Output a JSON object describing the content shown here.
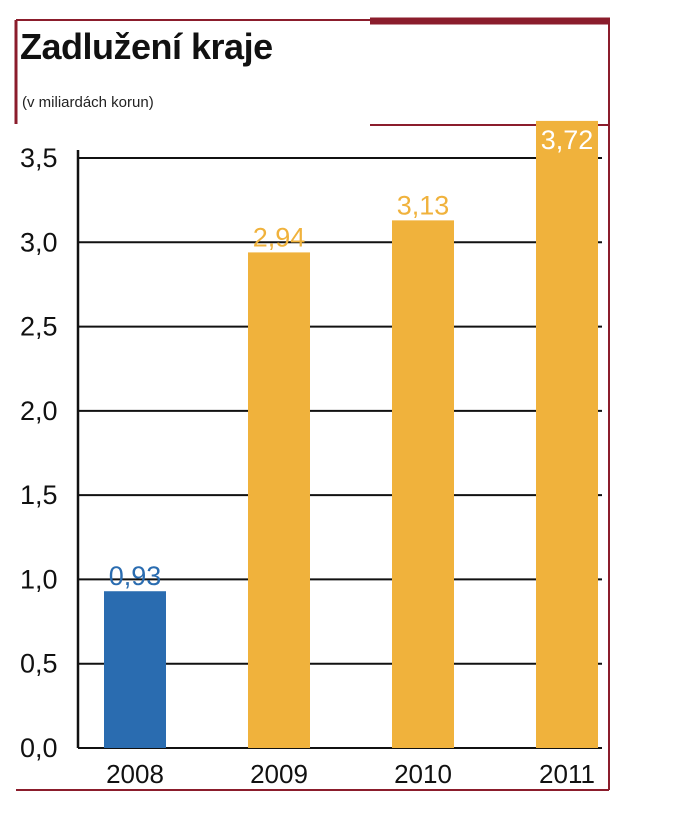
{
  "chart_data": {
    "type": "bar",
    "title": "Zadlužení kraje",
    "subtitle": "(v miliardách korun)",
    "categories": [
      "2008",
      "2009",
      "2010",
      "2011"
    ],
    "values": [
      0.93,
      2.94,
      3.13,
      3.72
    ],
    "value_labels": [
      "0,93",
      "2,94",
      "3,13",
      "3,72"
    ],
    "bar_colors": [
      "#2a6cb0",
      "#f0b23c",
      "#f0b23c",
      "#f0b23c"
    ],
    "yticks": [
      0.0,
      0.5,
      1.0,
      1.5,
      2.0,
      2.5,
      3.0,
      3.5
    ],
    "ytick_labels": [
      "0,0",
      "0,5",
      "1,0",
      "1,5",
      "2,0",
      "2,5",
      "3,0",
      "3,5"
    ],
    "ylim": [
      0,
      3.5
    ],
    "grid": true,
    "legend": "none"
  },
  "colors": {
    "frame": "#8b1d2c",
    "axis": "#111111",
    "gridline": "#111111"
  }
}
